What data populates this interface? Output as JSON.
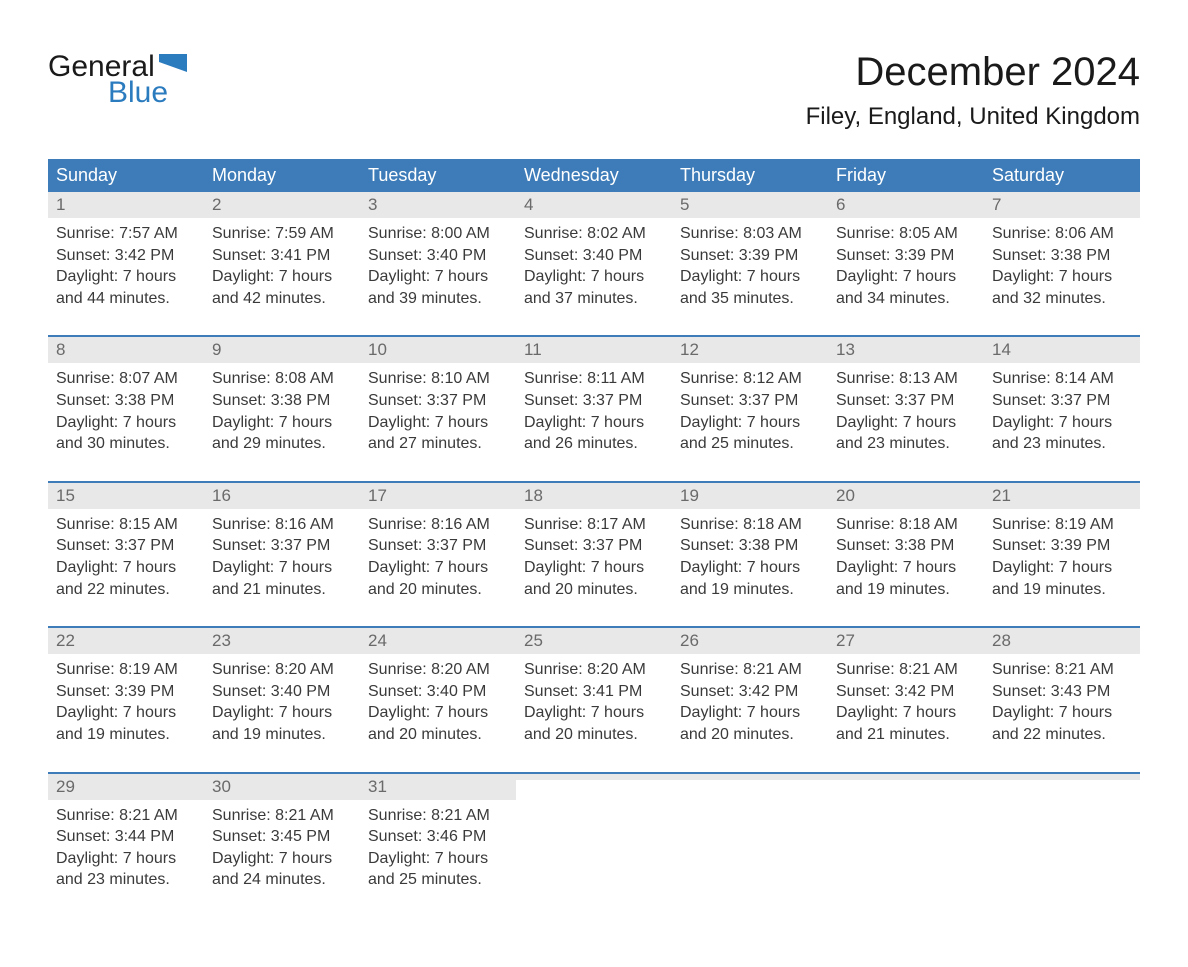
{
  "logo": {
    "general": "General",
    "blue": "Blue",
    "flag_color": "#2b7bbf"
  },
  "header": {
    "month_title": "December 2024",
    "location": "Filey, England, United Kingdom"
  },
  "colors": {
    "header_bg": "#3d7cb8",
    "header_text": "#ffffff",
    "week_border": "#3d7cb8",
    "daynum_bg": "#e8e8e8",
    "daynum_text": "#6a6a6a",
    "body_text": "#3a3a3a",
    "logo_blue": "#2b7bbf",
    "logo_black": "#1a1a1a",
    "page_bg": "#ffffff"
  },
  "day_names": [
    "Sunday",
    "Monday",
    "Tuesday",
    "Wednesday",
    "Thursday",
    "Friday",
    "Saturday"
  ],
  "weeks": [
    [
      {
        "num": "1",
        "sunrise": "Sunrise: 7:57 AM",
        "sunset": "Sunset: 3:42 PM",
        "dl1": "Daylight: 7 hours",
        "dl2": "and 44 minutes."
      },
      {
        "num": "2",
        "sunrise": "Sunrise: 7:59 AM",
        "sunset": "Sunset: 3:41 PM",
        "dl1": "Daylight: 7 hours",
        "dl2": "and 42 minutes."
      },
      {
        "num": "3",
        "sunrise": "Sunrise: 8:00 AM",
        "sunset": "Sunset: 3:40 PM",
        "dl1": "Daylight: 7 hours",
        "dl2": "and 39 minutes."
      },
      {
        "num": "4",
        "sunrise": "Sunrise: 8:02 AM",
        "sunset": "Sunset: 3:40 PM",
        "dl1": "Daylight: 7 hours",
        "dl2": "and 37 minutes."
      },
      {
        "num": "5",
        "sunrise": "Sunrise: 8:03 AM",
        "sunset": "Sunset: 3:39 PM",
        "dl1": "Daylight: 7 hours",
        "dl2": "and 35 minutes."
      },
      {
        "num": "6",
        "sunrise": "Sunrise: 8:05 AM",
        "sunset": "Sunset: 3:39 PM",
        "dl1": "Daylight: 7 hours",
        "dl2": "and 34 minutes."
      },
      {
        "num": "7",
        "sunrise": "Sunrise: 8:06 AM",
        "sunset": "Sunset: 3:38 PM",
        "dl1": "Daylight: 7 hours",
        "dl2": "and 32 minutes."
      }
    ],
    [
      {
        "num": "8",
        "sunrise": "Sunrise: 8:07 AM",
        "sunset": "Sunset: 3:38 PM",
        "dl1": "Daylight: 7 hours",
        "dl2": "and 30 minutes."
      },
      {
        "num": "9",
        "sunrise": "Sunrise: 8:08 AM",
        "sunset": "Sunset: 3:38 PM",
        "dl1": "Daylight: 7 hours",
        "dl2": "and 29 minutes."
      },
      {
        "num": "10",
        "sunrise": "Sunrise: 8:10 AM",
        "sunset": "Sunset: 3:37 PM",
        "dl1": "Daylight: 7 hours",
        "dl2": "and 27 minutes."
      },
      {
        "num": "11",
        "sunrise": "Sunrise: 8:11 AM",
        "sunset": "Sunset: 3:37 PM",
        "dl1": "Daylight: 7 hours",
        "dl2": "and 26 minutes."
      },
      {
        "num": "12",
        "sunrise": "Sunrise: 8:12 AM",
        "sunset": "Sunset: 3:37 PM",
        "dl1": "Daylight: 7 hours",
        "dl2": "and 25 minutes."
      },
      {
        "num": "13",
        "sunrise": "Sunrise: 8:13 AM",
        "sunset": "Sunset: 3:37 PM",
        "dl1": "Daylight: 7 hours",
        "dl2": "and 23 minutes."
      },
      {
        "num": "14",
        "sunrise": "Sunrise: 8:14 AM",
        "sunset": "Sunset: 3:37 PM",
        "dl1": "Daylight: 7 hours",
        "dl2": "and 23 minutes."
      }
    ],
    [
      {
        "num": "15",
        "sunrise": "Sunrise: 8:15 AM",
        "sunset": "Sunset: 3:37 PM",
        "dl1": "Daylight: 7 hours",
        "dl2": "and 22 minutes."
      },
      {
        "num": "16",
        "sunrise": "Sunrise: 8:16 AM",
        "sunset": "Sunset: 3:37 PM",
        "dl1": "Daylight: 7 hours",
        "dl2": "and 21 minutes."
      },
      {
        "num": "17",
        "sunrise": "Sunrise: 8:16 AM",
        "sunset": "Sunset: 3:37 PM",
        "dl1": "Daylight: 7 hours",
        "dl2": "and 20 minutes."
      },
      {
        "num": "18",
        "sunrise": "Sunrise: 8:17 AM",
        "sunset": "Sunset: 3:37 PM",
        "dl1": "Daylight: 7 hours",
        "dl2": "and 20 minutes."
      },
      {
        "num": "19",
        "sunrise": "Sunrise: 8:18 AM",
        "sunset": "Sunset: 3:38 PM",
        "dl1": "Daylight: 7 hours",
        "dl2": "and 19 minutes."
      },
      {
        "num": "20",
        "sunrise": "Sunrise: 8:18 AM",
        "sunset": "Sunset: 3:38 PM",
        "dl1": "Daylight: 7 hours",
        "dl2": "and 19 minutes."
      },
      {
        "num": "21",
        "sunrise": "Sunrise: 8:19 AM",
        "sunset": "Sunset: 3:39 PM",
        "dl1": "Daylight: 7 hours",
        "dl2": "and 19 minutes."
      }
    ],
    [
      {
        "num": "22",
        "sunrise": "Sunrise: 8:19 AM",
        "sunset": "Sunset: 3:39 PM",
        "dl1": "Daylight: 7 hours",
        "dl2": "and 19 minutes."
      },
      {
        "num": "23",
        "sunrise": "Sunrise: 8:20 AM",
        "sunset": "Sunset: 3:40 PM",
        "dl1": "Daylight: 7 hours",
        "dl2": "and 19 minutes."
      },
      {
        "num": "24",
        "sunrise": "Sunrise: 8:20 AM",
        "sunset": "Sunset: 3:40 PM",
        "dl1": "Daylight: 7 hours",
        "dl2": "and 20 minutes."
      },
      {
        "num": "25",
        "sunrise": "Sunrise: 8:20 AM",
        "sunset": "Sunset: 3:41 PM",
        "dl1": "Daylight: 7 hours",
        "dl2": "and 20 minutes."
      },
      {
        "num": "26",
        "sunrise": "Sunrise: 8:21 AM",
        "sunset": "Sunset: 3:42 PM",
        "dl1": "Daylight: 7 hours",
        "dl2": "and 20 minutes."
      },
      {
        "num": "27",
        "sunrise": "Sunrise: 8:21 AM",
        "sunset": "Sunset: 3:42 PM",
        "dl1": "Daylight: 7 hours",
        "dl2": "and 21 minutes."
      },
      {
        "num": "28",
        "sunrise": "Sunrise: 8:21 AM",
        "sunset": "Sunset: 3:43 PM",
        "dl1": "Daylight: 7 hours",
        "dl2": "and 22 minutes."
      }
    ],
    [
      {
        "num": "29",
        "sunrise": "Sunrise: 8:21 AM",
        "sunset": "Sunset: 3:44 PM",
        "dl1": "Daylight: 7 hours",
        "dl2": "and 23 minutes."
      },
      {
        "num": "30",
        "sunrise": "Sunrise: 8:21 AM",
        "sunset": "Sunset: 3:45 PM",
        "dl1": "Daylight: 7 hours",
        "dl2": "and 24 minutes."
      },
      {
        "num": "31",
        "sunrise": "Sunrise: 8:21 AM",
        "sunset": "Sunset: 3:46 PM",
        "dl1": "Daylight: 7 hours",
        "dl2": "and 25 minutes."
      },
      null,
      null,
      null,
      null
    ]
  ]
}
